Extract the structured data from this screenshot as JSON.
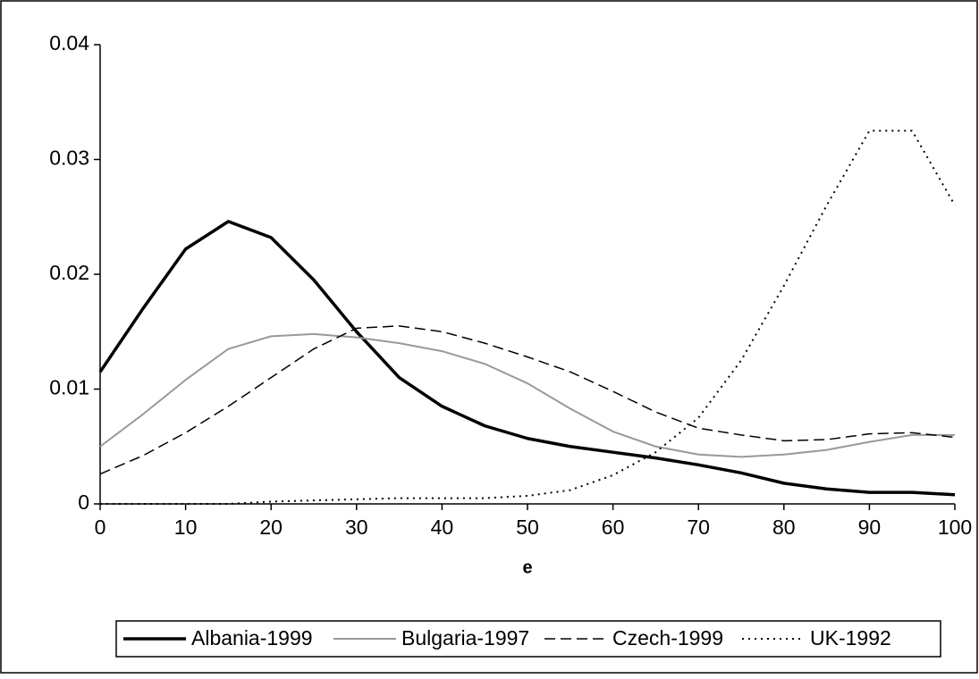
{
  "chart_data": {
    "type": "line",
    "x_label": "e",
    "x": [
      0,
      5,
      10,
      15,
      20,
      25,
      30,
      35,
      40,
      45,
      50,
      55,
      60,
      65,
      70,
      75,
      80,
      85,
      90,
      95,
      100
    ],
    "series": [
      {
        "name": "Albania-1999",
        "color": "#000000",
        "dash": "solid",
        "width": 3.5,
        "values": [
          0.0115,
          0.017,
          0.0222,
          0.0246,
          0.0232,
          0.0195,
          0.015,
          0.011,
          0.0085,
          0.0068,
          0.0057,
          0.005,
          0.0045,
          0.004,
          0.0034,
          0.0027,
          0.0018,
          0.0013,
          0.001,
          0.001,
          0.0008
        ]
      },
      {
        "name": "Bulgaria-1997",
        "color": "#999999",
        "dash": "solid",
        "width": 2,
        "values": [
          0.005,
          0.0078,
          0.0108,
          0.0135,
          0.0146,
          0.0148,
          0.0145,
          0.014,
          0.0133,
          0.0122,
          0.0105,
          0.0083,
          0.0063,
          0.005,
          0.0043,
          0.0041,
          0.0043,
          0.0047,
          0.0054,
          0.006,
          0.006
        ]
      },
      {
        "name": "Czech-1999",
        "color": "#000000",
        "dash": "dashed",
        "width": 1.5,
        "values": [
          0.0026,
          0.0042,
          0.0062,
          0.0085,
          0.011,
          0.0135,
          0.0153,
          0.0155,
          0.015,
          0.014,
          0.0128,
          0.0115,
          0.0098,
          0.008,
          0.0066,
          0.006,
          0.0055,
          0.0056,
          0.0061,
          0.0062,
          0.0058
        ]
      },
      {
        "name": "UK-1992",
        "color": "#000000",
        "dash": "dotted",
        "width": 2,
        "values": [
          0,
          0,
          0,
          0,
          0.0002,
          0.0003,
          0.0004,
          0.0005,
          0.0005,
          0.0005,
          0.0007,
          0.0012,
          0.0025,
          0.0045,
          0.0075,
          0.0125,
          0.019,
          0.026,
          0.0325,
          0.0325,
          0.026
        ]
      }
    ],
    "xlim": [
      0,
      100
    ],
    "xticks": [
      0,
      10,
      20,
      30,
      40,
      50,
      60,
      70,
      80,
      90,
      100
    ],
    "ylim": [
      0,
      0.04
    ],
    "yticks": [
      0,
      0.01,
      0.02,
      0.03,
      0.04
    ],
    "grid": false,
    "legend": "bottom"
  }
}
